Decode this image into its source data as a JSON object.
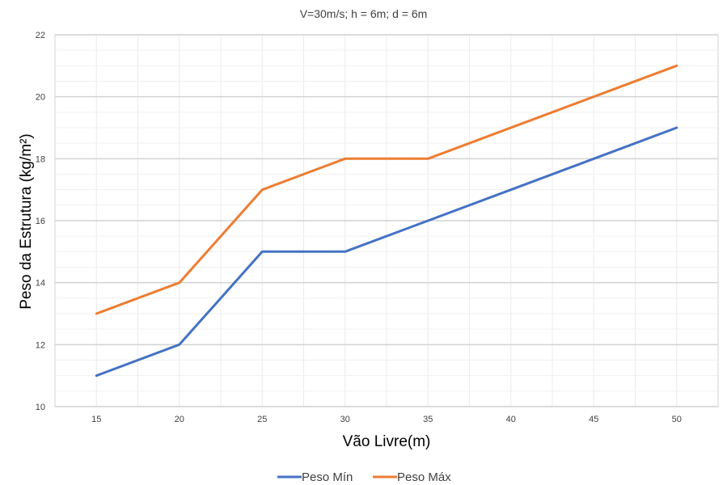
{
  "chart_data": {
    "type": "line",
    "title": "V=30m/s; h = 6m; d = 6m",
    "xlabel": "Vão Livre(m)",
    "ylabel": "Peso da Estrutura (kg/m²)",
    "categories": [
      "15",
      "20",
      "25",
      "30",
      "35",
      "40",
      "45",
      "50"
    ],
    "x": [
      15,
      20,
      25,
      30,
      35,
      40,
      45,
      50
    ],
    "xlim": [
      12.5,
      52.5
    ],
    "ylim": [
      10,
      22
    ],
    "yticks": [
      10,
      12,
      14,
      16,
      18,
      20,
      22
    ],
    "grid": true,
    "legend_position": "bottom",
    "series": [
      {
        "name": "Peso Mín",
        "color": "#4472C4",
        "x": [
          15,
          20,
          25,
          30,
          35,
          50
        ],
        "values": [
          11,
          12,
          15,
          15,
          16,
          19
        ]
      },
      {
        "name": "Peso Máx",
        "color": "#ED7D31",
        "x": [
          15,
          20,
          25,
          30,
          35,
          50
        ],
        "values": [
          13,
          14,
          17,
          18,
          18,
          21
        ]
      }
    ]
  }
}
